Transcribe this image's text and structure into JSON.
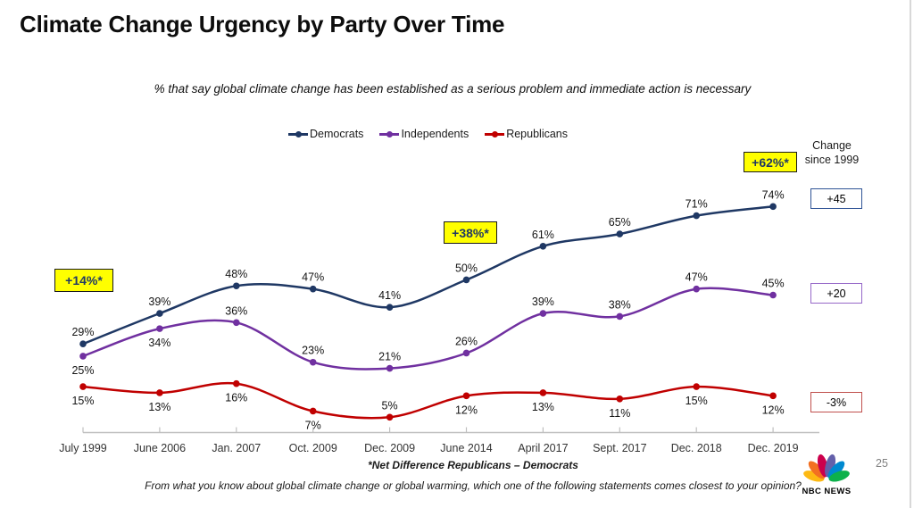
{
  "header": {
    "title": "Climate Change Urgency by Party Over Time",
    "subtitle": "% that say global climate change has been established as a serious problem and immediate action is necessary"
  },
  "chart_data": {
    "type": "line",
    "categories": [
      "July 1999",
      "June 2006",
      "Jan. 2007",
      "Oct. 2009",
      "Dec. 2009",
      "June 2014",
      "April 2017",
      "Sept. 2017",
      "Dec. 2018",
      "Dec. 2019"
    ],
    "series": [
      {
        "name": "Democrats",
        "color": "#1F3864",
        "values": [
          29,
          39,
          48,
          47,
          41,
          50,
          61,
          65,
          71,
          74
        ],
        "label_positions": [
          "above",
          "above",
          "above",
          "above",
          "above",
          "above",
          "above",
          "above",
          "above",
          "above"
        ]
      },
      {
        "name": "Independents",
        "color": "#7030A0",
        "values": [
          25,
          34,
          36,
          23,
          21,
          26,
          39,
          38,
          47,
          45
        ],
        "label_positions": [
          "below",
          "below",
          "above",
          "above",
          "above",
          "above",
          "above",
          "above",
          "above",
          "above"
        ]
      },
      {
        "name": "Republicans",
        "color": "#C00000",
        "values": [
          15,
          13,
          16,
          7,
          5,
          12,
          13,
          11,
          15,
          12
        ],
        "label_positions": [
          "below",
          "below",
          "below",
          "below",
          "above",
          "below",
          "below",
          "below",
          "below",
          "below"
        ]
      }
    ],
    "value_suffix": "%",
    "ylim": [
      0,
      100
    ],
    "grid": false,
    "legend_position": "top",
    "annotations": [
      {
        "text": "+14%*",
        "category": "July 1999"
      },
      {
        "text": "+38%*",
        "category": "June 2014"
      },
      {
        "text": "+62%*",
        "category": "Dec. 2019"
      }
    ],
    "change_since_1999": {
      "heading_line1": "Change",
      "heading_line2": "since 1999",
      "items": [
        {
          "text": "+45",
          "series": "Democrats",
          "border_color": "#2E5395"
        },
        {
          "text": "+20",
          "series": "Independents",
          "border_color": "#9668C8"
        },
        {
          "text": "-3%",
          "series": "Republicans",
          "border_color": "#C0504D"
        }
      ]
    },
    "colors": {
      "highlight_bg": "#FFFF00",
      "highlight_text": "#1F3864",
      "axis": "#BFBFBF"
    }
  },
  "footnotes": {
    "note": "*Net Difference Republicans – Democrats",
    "question": "From what you know about global climate change or global warming, which one of the following statements comes closest to your opinion?"
  },
  "brand": {
    "name": "NBC NEWS",
    "feather_colors": [
      "#FDB913",
      "#F37021",
      "#CC004C",
      "#6460AA",
      "#0089D0",
      "#0DB14B"
    ]
  },
  "page": {
    "page_number": "25"
  }
}
